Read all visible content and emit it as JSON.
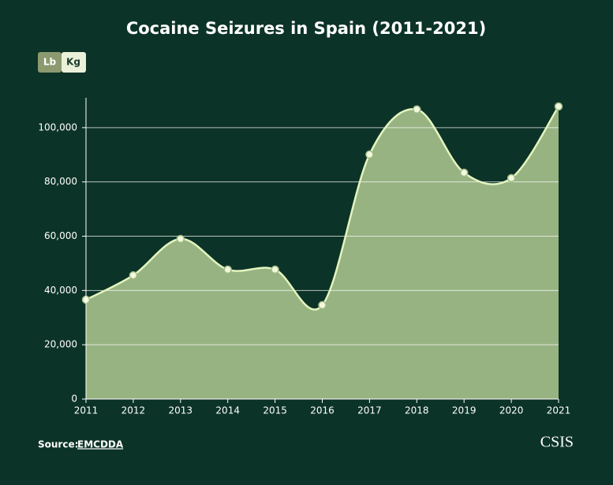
{
  "chart_data": {
    "type": "area",
    "title": "Cocaine Seizures in Spain (2011-2021)",
    "unit_buttons": [
      "Lb",
      "Kg"
    ],
    "categories": [
      "2011",
      "2012",
      "2013",
      "2014",
      "2015",
      "2016",
      "2017",
      "2018",
      "2019",
      "2020",
      "2021"
    ],
    "values": [
      36600,
      45600,
      59000,
      47700,
      47700,
      34600,
      90100,
      106700,
      83400,
      81400,
      107800
    ],
    "color": "#9fba87",
    "line_color": "#e4f4bf",
    "ylim": [
      0,
      111000
    ],
    "yticks": [
      0,
      {
        "value": 20000,
        "label": "20,000"
      },
      {
        "value": 40000,
        "label": "40,000"
      },
      {
        "value": 60000,
        "label": "60,000"
      },
      {
        "value": 80000,
        "label": "80,000"
      },
      {
        "value": 100000,
        "label": "100,000"
      }
    ],
    "grid": true,
    "source_label": "Source:",
    "source": "EMCDDA",
    "brand": "CSIS"
  }
}
